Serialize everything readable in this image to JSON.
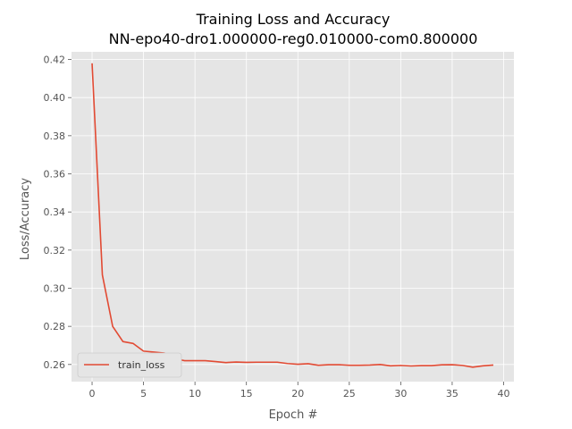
{
  "chart_data": {
    "type": "line",
    "title": "Training Loss and Accuracy",
    "subtitle": "NN-epo40-dro1.000000-reg0.010000-com0.800000",
    "xlabel": "Epoch #",
    "ylabel": "Loss/Accuracy",
    "xlim": [
      -2,
      41
    ],
    "ylim": [
      0.251,
      0.424
    ],
    "xticks": [
      0,
      5,
      10,
      15,
      20,
      25,
      30,
      35,
      40
    ],
    "yticks": [
      0.26,
      0.28,
      0.3,
      0.32,
      0.34,
      0.36,
      0.38,
      0.4,
      0.42
    ],
    "ytick_labels": [
      "0.26",
      "0.28",
      "0.30",
      "0.32",
      "0.34",
      "0.36",
      "0.38",
      "0.40",
      "0.42"
    ],
    "grid": true,
    "legend_position": "lower-left",
    "colors": {
      "background": "#e5e5e5",
      "grid": "#ffffff",
      "series": "#e24a33"
    },
    "series": [
      {
        "name": "train_loss",
        "x": [
          0,
          1,
          2,
          3,
          4,
          5,
          6,
          7,
          8,
          9,
          10,
          11,
          12,
          13,
          14,
          15,
          16,
          17,
          18,
          19,
          20,
          21,
          22,
          23,
          24,
          25,
          26,
          27,
          28,
          29,
          30,
          31,
          32,
          33,
          34,
          35,
          36,
          37,
          38,
          39
        ],
        "values": [
          0.418,
          0.307,
          0.28,
          0.272,
          0.271,
          0.267,
          0.2665,
          0.266,
          0.263,
          0.262,
          0.262,
          0.262,
          0.2615,
          0.261,
          0.2613,
          0.2611,
          0.2612,
          0.2612,
          0.2612,
          0.2605,
          0.2601,
          0.2604,
          0.2596,
          0.2599,
          0.2599,
          0.2596,
          0.2596,
          0.2597,
          0.26,
          0.2593,
          0.2595,
          0.2592,
          0.2594,
          0.2594,
          0.2598,
          0.2599,
          0.2595,
          0.2586,
          0.2593,
          0.2597
        ]
      }
    ]
  }
}
